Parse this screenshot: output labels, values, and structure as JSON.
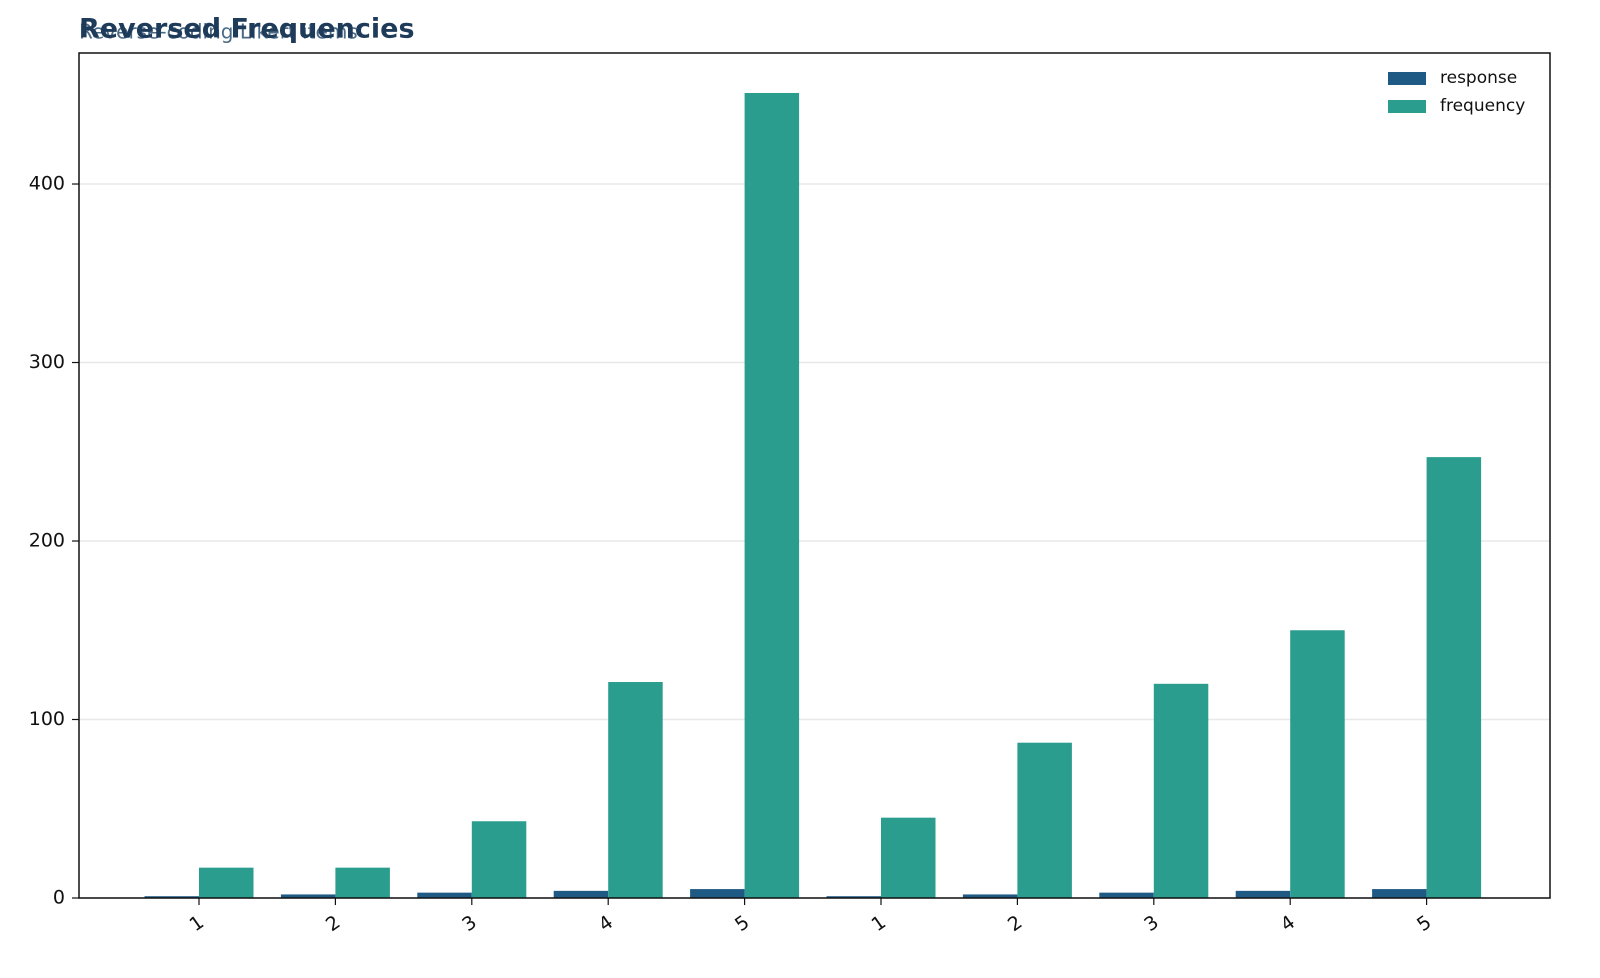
{
  "chart_data": {
    "type": "bar",
    "title": "Reversed Frequencies",
    "subtitle": "Reverse-coding Likert items",
    "categories": [
      "1",
      "2",
      "3",
      "4",
      "5",
      "1",
      "2",
      "3",
      "4",
      "5"
    ],
    "series": [
      {
        "name": "response",
        "color": "#1f5a85",
        "values": [
          1,
          2,
          3,
          4,
          5,
          1,
          2,
          3,
          4,
          5
        ]
      },
      {
        "name": "frequency",
        "color": "#2a9d8f",
        "values": [
          17,
          17,
          43,
          121,
          451,
          45,
          87,
          120,
          150,
          247
        ]
      }
    ],
    "ylim": [
      0,
      473.4
    ],
    "yticks": [
      0,
      100,
      200,
      300,
      400
    ],
    "grid": true,
    "legend": "upper right"
  }
}
